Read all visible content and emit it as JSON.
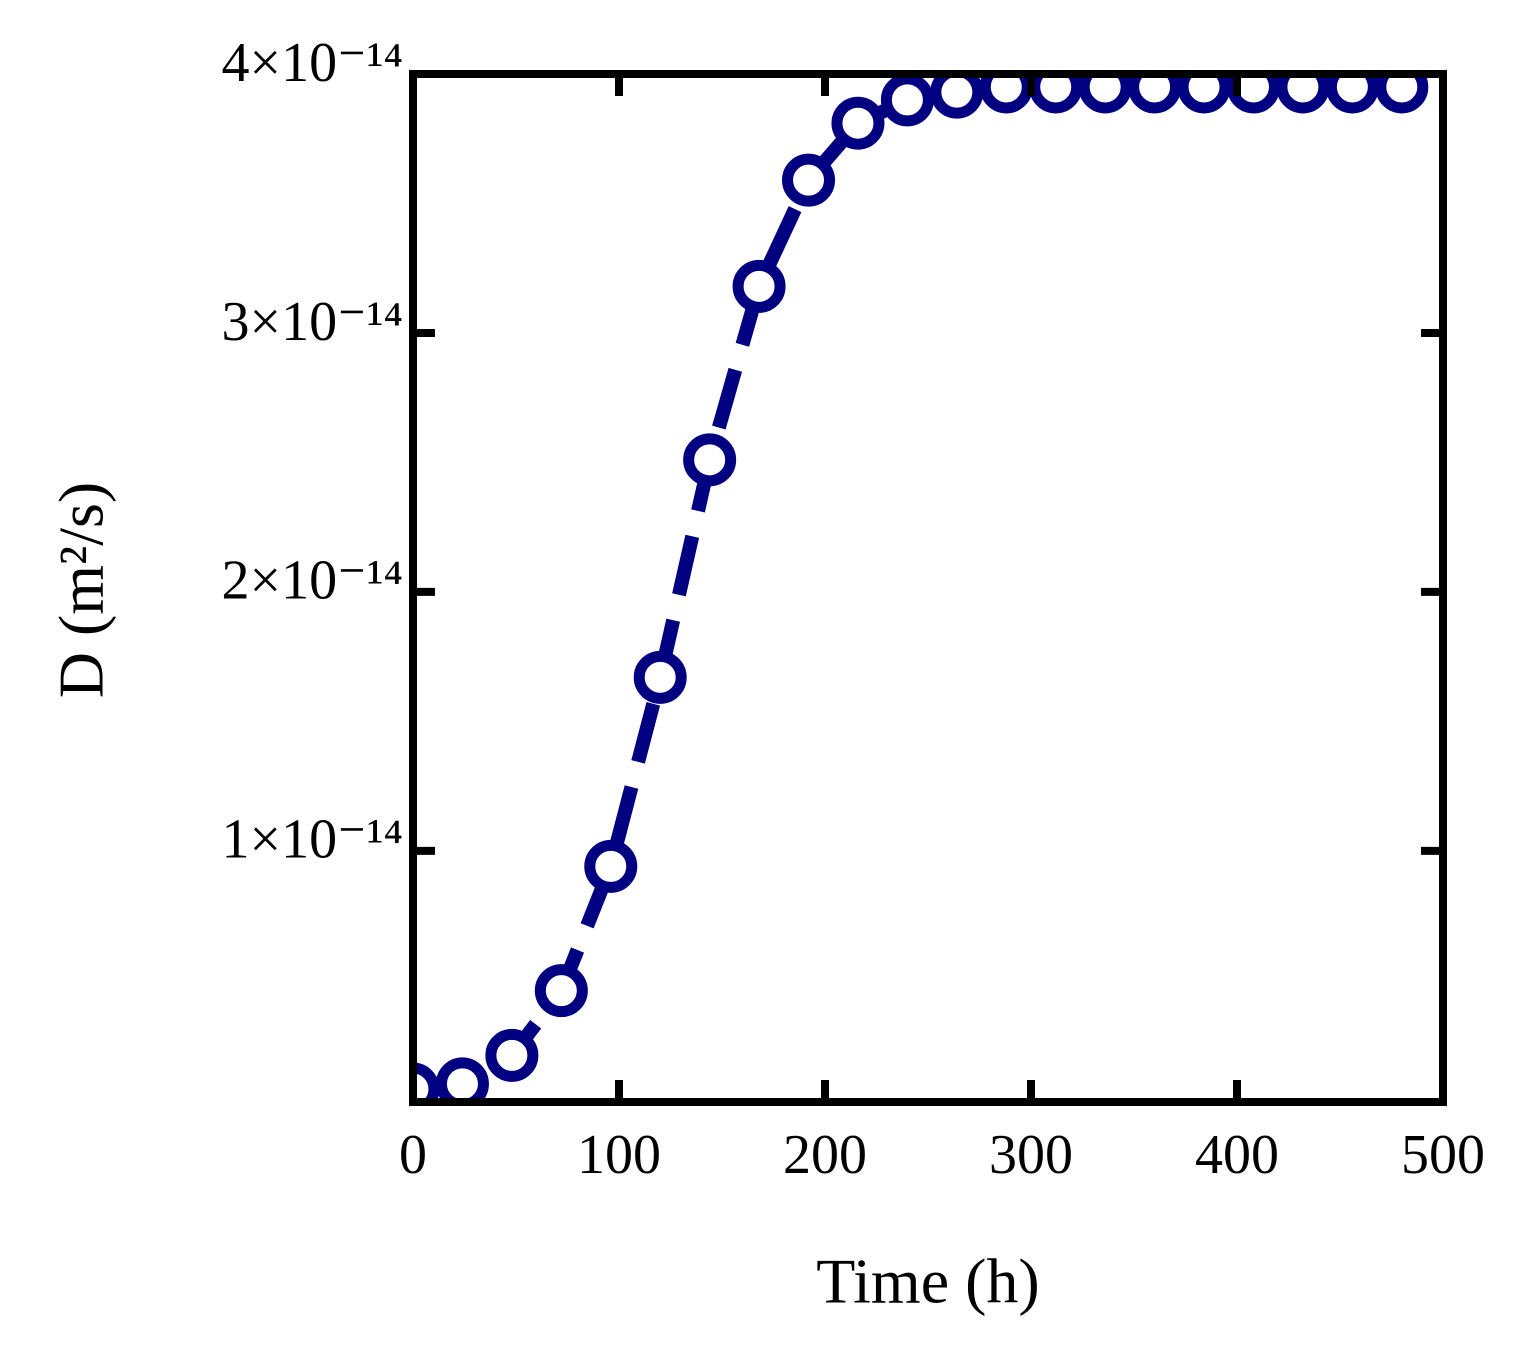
{
  "chart_data": {
    "type": "line",
    "x_label": "Time (h)",
    "y_label": "D (m²/s)",
    "x": [
      0,
      24,
      48,
      72,
      96,
      120,
      144,
      168,
      192,
      216,
      240,
      264,
      288,
      312,
      336,
      360,
      384,
      408,
      432,
      456,
      480
    ],
    "series": [
      {
        "name": "D",
        "color": "#000080",
        "values": [
          8e-16,
          1e-15,
          2.1e-15,
          4.6e-15,
          9.4e-15,
          1.67e-14,
          2.51e-14,
          3.18e-14,
          3.59e-14,
          3.81e-14,
          3.9e-14,
          3.93e-14,
          3.95e-14,
          3.95e-14,
          3.95e-14,
          3.95e-14,
          3.95e-14,
          3.95e-14,
          3.95e-14,
          3.95e-14,
          3.95e-14
        ]
      }
    ],
    "xlim": [
      0,
      500
    ],
    "xticks": [
      0,
      100,
      200,
      300,
      400,
      500
    ],
    "ylim": [
      3e-16,
      4e-14
    ],
    "yticks": [
      {
        "value": 1e-14,
        "label": "1×10⁻¹⁴"
      },
      {
        "value": 2e-14,
        "label": "2×10⁻¹⁴"
      },
      {
        "value": 3e-14,
        "label": "3×10⁻¹⁴"
      },
      {
        "value": 4e-14,
        "label": "4×10⁻¹⁴"
      }
    ],
    "grid": false
  }
}
